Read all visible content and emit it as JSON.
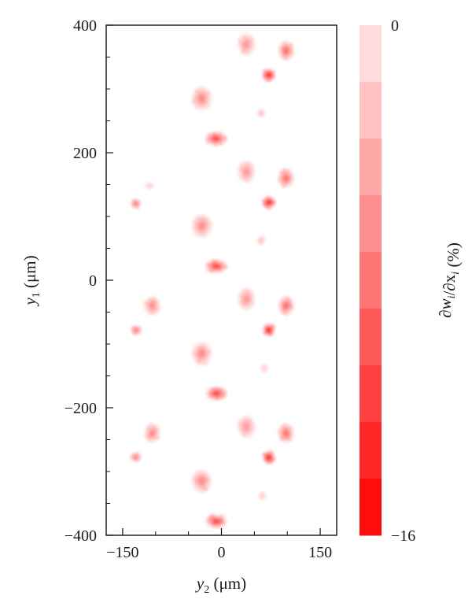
{
  "chart_data": {
    "type": "heatmap",
    "title": "",
    "xlabel": {
      "main": "y",
      "sub": "2",
      "unit": " (μm)"
    },
    "ylabel": {
      "main": "y",
      "sub": "1",
      "unit": " (μm)"
    },
    "xlim": [
      -175,
      175
    ],
    "ylim": [
      -400,
      400
    ],
    "x_ticks": [
      -150,
      0,
      150
    ],
    "x_tick_labels": [
      "−150",
      "0",
      "150"
    ],
    "y_ticks": [
      -400,
      -200,
      0,
      200,
      400
    ],
    "y_tick_labels": [
      "−400",
      "−200",
      "0",
      "200",
      "400"
    ],
    "colorbar": {
      "label": "∂w_i/∂x_i (%)",
      "min": -16,
      "max": 0,
      "min_label": "−16",
      "max_label": "0",
      "levels": 9,
      "low_color": "#ff0000",
      "high_color": "#ffe8e8"
    },
    "grid": false,
    "clusters": [
      {
        "x": 38,
        "y": 370,
        "rx": 12,
        "ry": 16,
        "value": -6
      },
      {
        "x": 98,
        "y": 360,
        "rx": 11,
        "ry": 14,
        "value": -9
      },
      {
        "x": 72,
        "y": 322,
        "rx": 9,
        "ry": 9,
        "value": -15
      },
      {
        "x": -30,
        "y": 285,
        "rx": 14,
        "ry": 17,
        "value": -7
      },
      {
        "x": 60,
        "y": 262,
        "rx": 5,
        "ry": 6,
        "value": -3
      },
      {
        "x": -8,
        "y": 222,
        "rx": 15,
        "ry": 10,
        "value": -12
      },
      {
        "x": 38,
        "y": 170,
        "rx": 12,
        "ry": 16,
        "value": -6
      },
      {
        "x": 98,
        "y": 160,
        "rx": 11,
        "ry": 14,
        "value": -9
      },
      {
        "x": -110,
        "y": 148,
        "rx": 6,
        "ry": 4,
        "value": -2
      },
      {
        "x": 72,
        "y": 122,
        "rx": 9,
        "ry": 9,
        "value": -15
      },
      {
        "x": -130,
        "y": 120,
        "rx": 7,
        "ry": 7,
        "value": -8
      },
      {
        "x": -30,
        "y": 85,
        "rx": 14,
        "ry": 17,
        "value": -7
      },
      {
        "x": 60,
        "y": 62,
        "rx": 5,
        "ry": 6,
        "value": -3
      },
      {
        "x": -8,
        "y": 22,
        "rx": 15,
        "ry": 10,
        "value": -12
      },
      {
        "x": -105,
        "y": -40,
        "rx": 11,
        "ry": 14,
        "value": -7
      },
      {
        "x": 38,
        "y": -30,
        "rx": 12,
        "ry": 16,
        "value": -6
      },
      {
        "x": 98,
        "y": -40,
        "rx": 11,
        "ry": 14,
        "value": -9
      },
      {
        "x": -130,
        "y": -78,
        "rx": 7,
        "ry": 7,
        "value": -8
      },
      {
        "x": 72,
        "y": -78,
        "rx": 9,
        "ry": 9,
        "value": -15
      },
      {
        "x": -30,
        "y": -115,
        "rx": 14,
        "ry": 17,
        "value": -7
      },
      {
        "x": 65,
        "y": -138,
        "rx": 5,
        "ry": 6,
        "value": -2
      },
      {
        "x": -8,
        "y": -178,
        "rx": 15,
        "ry": 10,
        "value": -12
      },
      {
        "x": -105,
        "y": -240,
        "rx": 11,
        "ry": 14,
        "value": -7
      },
      {
        "x": 38,
        "y": -230,
        "rx": 12,
        "ry": 16,
        "value": -6
      },
      {
        "x": 98,
        "y": -240,
        "rx": 11,
        "ry": 14,
        "value": -9
      },
      {
        "x": -130,
        "y": -278,
        "rx": 7,
        "ry": 7,
        "value": -8
      },
      {
        "x": 72,
        "y": -278,
        "rx": 9,
        "ry": 9,
        "value": -15
      },
      {
        "x": -30,
        "y": -315,
        "rx": 14,
        "ry": 17,
        "value": -7
      },
      {
        "x": 62,
        "y": -338,
        "rx": 5,
        "ry": 6,
        "value": -2
      },
      {
        "x": -8,
        "y": -378,
        "rx": 15,
        "ry": 10,
        "value": -12
      }
    ]
  }
}
